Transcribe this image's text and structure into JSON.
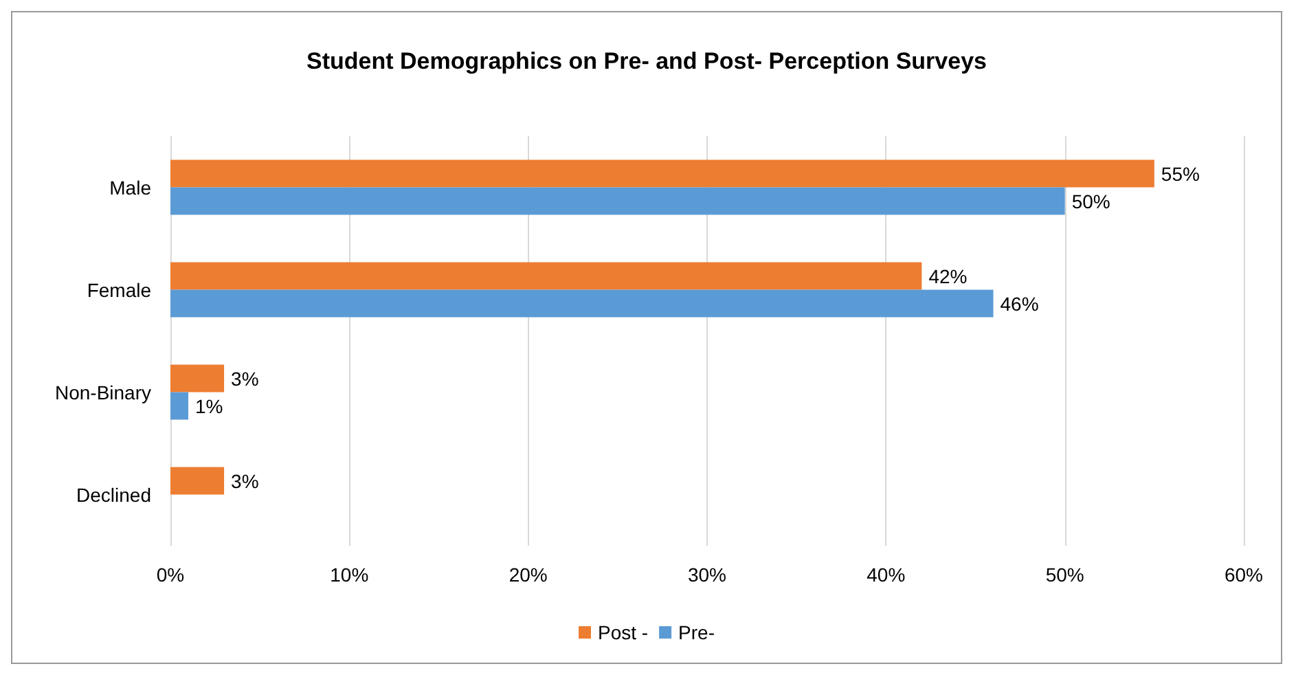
{
  "chart_data": {
    "type": "bar",
    "orientation": "horizontal",
    "title": "Student Demographics on Pre- and Post- Perception Surveys",
    "categories": [
      "Male",
      "Female",
      "Non-Binary",
      "Declined"
    ],
    "series": [
      {
        "name": "Post -",
        "color": "#ed7d31",
        "values": [
          55,
          42,
          3,
          3
        ],
        "value_labels": [
          "55%",
          "42%",
          "3%",
          "3%"
        ]
      },
      {
        "name": "Pre-",
        "color": "#5b9bd5",
        "values": [
          50,
          46,
          1,
          null
        ],
        "value_labels": [
          "50%",
          "46%",
          "1%",
          null
        ]
      }
    ],
    "xlim": [
      0,
      60
    ],
    "xticks": [
      {
        "value": 0,
        "label": "0%"
      },
      {
        "value": 10,
        "label": "10%"
      },
      {
        "value": 20,
        "label": "20%"
      },
      {
        "value": 30,
        "label": "30%"
      },
      {
        "value": 40,
        "label": "40%"
      },
      {
        "value": 50,
        "label": "50%"
      },
      {
        "value": 60,
        "label": "60%"
      }
    ],
    "grid": "x",
    "legend": "bottom"
  }
}
